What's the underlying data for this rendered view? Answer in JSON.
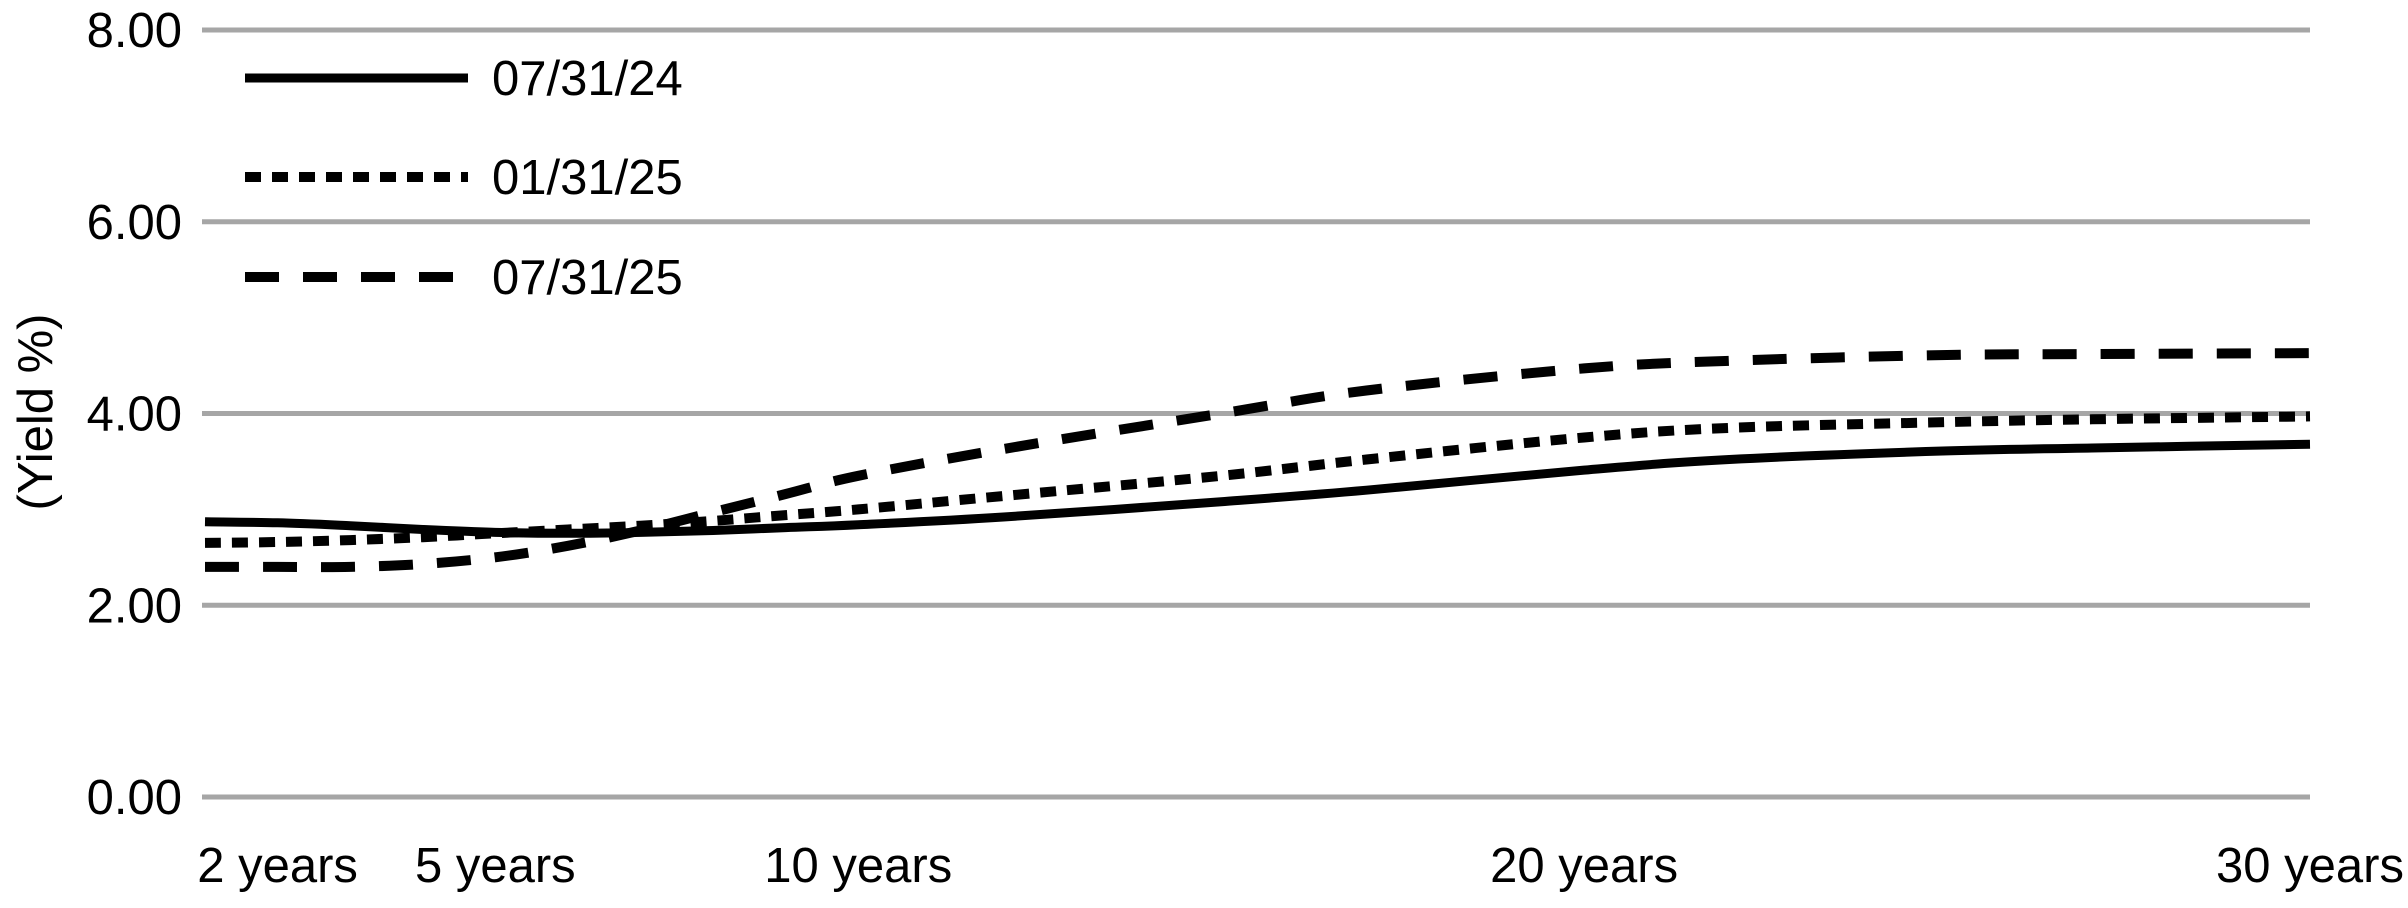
{
  "chart_data": {
    "type": "line",
    "title": "",
    "ylabel": "(Yield %)",
    "xlabel": "",
    "x_unit": "years",
    "xlim": [
      1,
      30
    ],
    "ylim": [
      0,
      8
    ],
    "grid": "horizontal-only",
    "grid_color": "#a6a6a6",
    "line_color": "#000000",
    "background": "#ffffff",
    "legend_position": "top-left-inside",
    "x_years": [
      1,
      2,
      3,
      4,
      5,
      6,
      7,
      8,
      9,
      10,
      12,
      15,
      17,
      20,
      22,
      25,
      27,
      30
    ],
    "x_ticks": [
      {
        "value": 2,
        "label": "2 years"
      },
      {
        "value": 5,
        "label": "5 years"
      },
      {
        "value": 10,
        "label": "10 years"
      },
      {
        "value": 20,
        "label": "20 years"
      },
      {
        "value": 30,
        "label": "30 years"
      }
    ],
    "y_ticks": [
      {
        "value": 8,
        "label": "8.00"
      },
      {
        "value": 6,
        "label": "6.00"
      },
      {
        "value": 4,
        "label": "4.00"
      },
      {
        "value": 2,
        "label": "2.00"
      },
      {
        "value": 0,
        "label": "0.00"
      }
    ],
    "series": [
      {
        "name": "07/31/24",
        "style": "solid",
        "values": [
          2.87,
          2.86,
          2.83,
          2.79,
          2.76,
          2.75,
          2.76,
          2.78,
          2.81,
          2.84,
          2.92,
          3.08,
          3.2,
          3.41,
          3.52,
          3.61,
          3.64,
          3.68
        ]
      },
      {
        "name": "01/31/25",
        "style": "dotted",
        "values": [
          2.65,
          2.66,
          2.68,
          2.71,
          2.75,
          2.79,
          2.83,
          2.88,
          2.94,
          3.0,
          3.14,
          3.35,
          3.52,
          3.75,
          3.85,
          3.91,
          3.94,
          3.97
        ]
      },
      {
        "name": "07/31/25",
        "style": "dashed",
        "values": [
          2.4,
          2.4,
          2.4,
          2.43,
          2.5,
          2.62,
          2.78,
          2.97,
          3.16,
          3.35,
          3.63,
          4.0,
          4.24,
          4.47,
          4.55,
          4.61,
          4.62,
          4.63
        ]
      }
    ]
  }
}
